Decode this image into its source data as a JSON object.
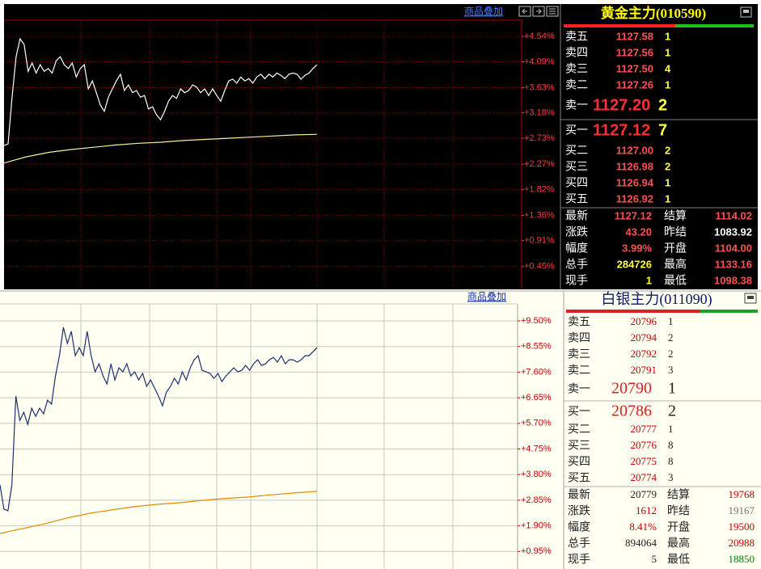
{
  "chart_data": [
    {
      "type": "line",
      "grid": true,
      "ylim": [
        0,
        4.83
      ],
      "yticks": [
        {
          "value": 4.54,
          "label": "+4.54%"
        },
        {
          "value": 4.09,
          "label": "+4.09%"
        },
        {
          "value": 3.63,
          "label": "+3.63%"
        },
        {
          "value": 3.18,
          "label": "+3.18%"
        },
        {
          "value": 2.73,
          "label": "+2.73%"
        },
        {
          "value": 2.27,
          "label": "+2.27%"
        },
        {
          "value": 1.82,
          "label": "+1.82%"
        },
        {
          "value": 1.36,
          "label": "+1.36%"
        },
        {
          "value": 0.91,
          "label": "+0.91%"
        },
        {
          "value": 0.45,
          "label": "+0.45%"
        }
      ],
      "series": [
        {
          "color": "#ffffff",
          "values": [
            2.6,
            2.63,
            3.46,
            4.18,
            4.5,
            4.4,
            3.92,
            4.07,
            3.89,
            4.04,
            3.92,
            3.97,
            3.89,
            4.11,
            4.18,
            4.04,
            3.97,
            4.07,
            3.82,
            3.97,
            4.04,
            3.61,
            3.75,
            3.54,
            3.32,
            3.21,
            3.46,
            3.61,
            3.75,
            3.87,
            3.58,
            3.68,
            3.54,
            3.58,
            3.46,
            3.49,
            3.25,
            3.29,
            3.15,
            3.06,
            3.21,
            3.39,
            3.49,
            3.44,
            3.61,
            3.54,
            3.58,
            3.68,
            3.64,
            3.54,
            3.61,
            3.49,
            3.61,
            3.49,
            3.39,
            3.58,
            3.75,
            3.78,
            3.71,
            3.82,
            3.75,
            3.79,
            3.71,
            3.82,
            3.87,
            3.79,
            3.87,
            3.82,
            3.89,
            3.85,
            3.79,
            3.87,
            3.89,
            3.87,
            3.78,
            3.85,
            3.89,
            3.97,
            4.04
          ]
        },
        {
          "color": "#f0f0a0",
          "values": [
            2.29,
            2.4,
            2.48,
            2.53,
            2.57,
            2.61,
            2.64,
            2.66,
            2.69,
            2.71,
            2.73,
            2.75,
            2.77,
            2.79,
            2.8
          ]
        }
      ]
    },
    {
      "type": "line",
      "grid": true,
      "ylim": [
        0.3,
        10.13
      ],
      "yticks": [
        {
          "value": 9.5,
          "label": "+9.50%"
        },
        {
          "value": 8.55,
          "label": "+8.55%"
        },
        {
          "value": 7.6,
          "label": "+7.60%"
        },
        {
          "value": 6.65,
          "label": "+6.65%"
        },
        {
          "value": 5.7,
          "label": "+5.70%"
        },
        {
          "value": 4.75,
          "label": "+4.75%"
        },
        {
          "value": 3.8,
          "label": "+3.80%"
        },
        {
          "value": 2.85,
          "label": "+2.85%"
        },
        {
          "value": 1.9,
          "label": "+1.90%"
        },
        {
          "value": 0.95,
          "label": "+0.95%"
        }
      ],
      "series": [
        {
          "color": "#1c2f6e",
          "values": [
            3.42,
            2.52,
            2.46,
            3.42,
            6.71,
            5.81,
            6.11,
            5.66,
            6.26,
            5.96,
            6.26,
            6.05,
            6.56,
            6.41,
            7.46,
            8.21,
            9.26,
            8.66,
            9.11,
            8.21,
            8.51,
            8.21,
            9.11,
            8.21,
            7.61,
            7.91,
            7.46,
            7.16,
            7.91,
            7.31,
            7.76,
            7.61,
            7.91,
            7.46,
            7.61,
            7.31,
            7.55,
            7.07,
            7.31,
            7.01,
            6.71,
            6.35,
            6.86,
            7.07,
            7.37,
            7.16,
            7.61,
            7.31,
            7.76,
            8.06,
            8.21,
            7.67,
            7.61,
            7.55,
            7.37,
            7.55,
            7.25,
            7.46,
            7.61,
            7.76,
            7.61,
            7.67,
            7.85,
            7.67,
            7.91,
            8.06,
            7.85,
            7.91,
            8.06,
            8.15,
            7.97,
            8.21,
            7.91,
            8.06,
            8.06,
            7.97,
            8.06,
            8.21,
            8.21,
            8.36,
            8.51
          ]
        },
        {
          "color": "#e08a00",
          "values": [
            1.62,
            1.8,
            1.98,
            2.2,
            2.37,
            2.5,
            2.62,
            2.7,
            2.76,
            2.85,
            2.92,
            2.97,
            3.05,
            3.12,
            3.18
          ]
        }
      ]
    }
  ],
  "panels": [
    {
      "overlay_button": "商品叠加",
      "quote": {
        "title": "黄金主力(010590)",
        "asks": [
          {
            "label": "卖五",
            "price": "1127.58",
            "volume": "1"
          },
          {
            "label": "卖四",
            "price": "1127.56",
            "volume": "1"
          },
          {
            "label": "卖三",
            "price": "1127.50",
            "volume": "4"
          },
          {
            "label": "卖二",
            "price": "1127.26",
            "volume": "1"
          },
          {
            "label": "卖一",
            "price": "1127.20",
            "volume": "2"
          }
        ],
        "bids": [
          {
            "label": "买一",
            "price": "1127.12",
            "volume": "7"
          },
          {
            "label": "买二",
            "price": "1127.00",
            "volume": "2"
          },
          {
            "label": "买三",
            "price": "1126.98",
            "volume": "2"
          },
          {
            "label": "买四",
            "price": "1126.94",
            "volume": "1"
          },
          {
            "label": "买五",
            "price": "1126.92",
            "volume": "1"
          }
        ],
        "stats": [
          [
            {
              "label": "最新",
              "value": "1127.12"
            },
            {
              "label": "结算",
              "value": "1114.02"
            }
          ],
          [
            {
              "label": "涨跌",
              "value": "43.20"
            },
            {
              "label": "昨结",
              "value": "1083.92"
            }
          ],
          [
            {
              "label": "幅度",
              "value": "3.99%"
            },
            {
              "label": "开盘",
              "value": "1104.00"
            }
          ],
          [
            {
              "label": "总手",
              "value": "284726"
            },
            {
              "label": "最高",
              "value": "1133.16"
            }
          ],
          [
            {
              "label": "现手",
              "value": "1"
            },
            {
              "label": "最低",
              "value": "1098.38"
            }
          ]
        ]
      }
    },
    {
      "overlay_button": "商品叠加",
      "quote": {
        "title": "白银主力(011090)",
        "asks": [
          {
            "label": "卖五",
            "price": "20796",
            "volume": "1"
          },
          {
            "label": "卖四",
            "price": "20794",
            "volume": "2"
          },
          {
            "label": "卖三",
            "price": "20792",
            "volume": "2"
          },
          {
            "label": "卖二",
            "price": "20791",
            "volume": "3"
          },
          {
            "label": "卖一",
            "price": "20790",
            "volume": "1"
          }
        ],
        "bids": [
          {
            "label": "买一",
            "price": "20786",
            "volume": "2"
          },
          {
            "label": "买二",
            "price": "20777",
            "volume": "1"
          },
          {
            "label": "买三",
            "price": "20776",
            "volume": "8"
          },
          {
            "label": "买四",
            "price": "20775",
            "volume": "8"
          },
          {
            "label": "买五",
            "price": "20774",
            "volume": "3"
          }
        ],
        "stats": [
          [
            {
              "label": "最新",
              "value": "20779"
            },
            {
              "label": "结算",
              "value": "19768"
            }
          ],
          [
            {
              "label": "涨跌",
              "value": "1612"
            },
            {
              "label": "昨结",
              "value": "19167"
            }
          ],
          [
            {
              "label": "幅度",
              "value": "8.41%"
            },
            {
              "label": "开盘",
              "value": "19500"
            }
          ],
          [
            {
              "label": "总手",
              "value": "894064"
            },
            {
              "label": "最高",
              "value": "20988"
            }
          ],
          [
            {
              "label": "现手",
              "value": "5"
            },
            {
              "label": "最低",
              "value": "18850"
            }
          ]
        ]
      }
    }
  ]
}
